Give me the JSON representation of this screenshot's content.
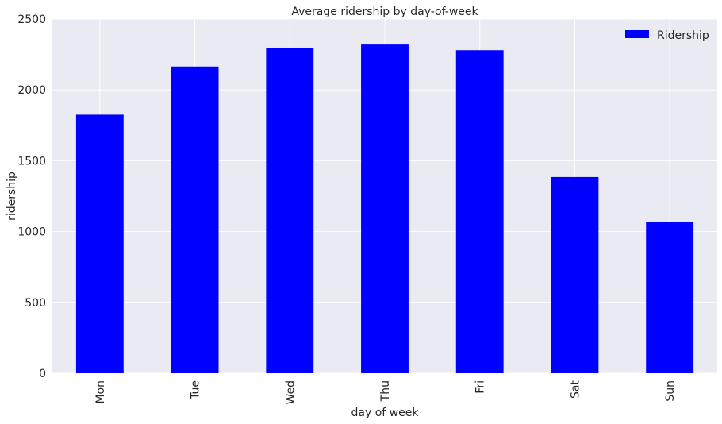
{
  "chart_data": {
    "type": "bar",
    "title": "Average ridership by day-of-week",
    "xlabel": "day of week",
    "ylabel": "ridership",
    "categories": [
      "Mon",
      "Tue",
      "Wed",
      "Thu",
      "Fri",
      "Sat",
      "Sun"
    ],
    "series": [
      {
        "name": "Ridership",
        "values": [
          1825,
          2165,
          2297,
          2320,
          2280,
          1385,
          1065
        ],
        "color": "#0000ff"
      }
    ],
    "ylim": [
      0,
      2500
    ],
    "yticks": [
      "0",
      "500",
      "1000",
      "1500",
      "2000",
      "2500"
    ],
    "grid": true,
    "legend_position": "top-right",
    "background_color": "#eaeaf2",
    "grid_color": "#ffffff"
  }
}
